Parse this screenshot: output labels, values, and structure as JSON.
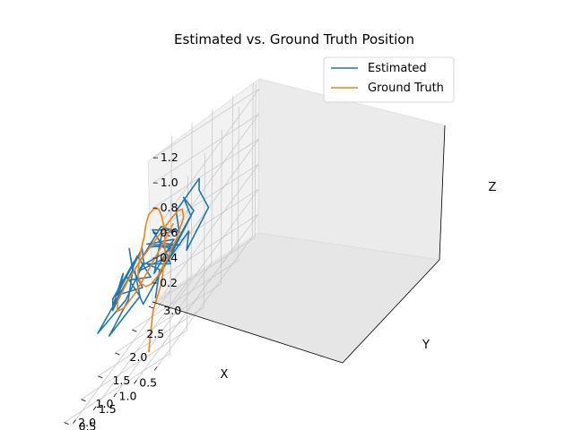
{
  "chart_data": {
    "type": "line",
    "projection": "3d",
    "title": "Estimated vs. Ground Truth Position",
    "xlabel": "X",
    "ylabel": "Y",
    "zlabel": "Z",
    "xlim": [
      0.35,
      2.95
    ],
    "ylim": [
      0.3,
      3.1
    ],
    "zlim": [
      0.05,
      1.28
    ],
    "xticks": [
      "0.5",
      "1.0",
      "1.5",
      "2.0",
      "2.5"
    ],
    "yticks": [
      "0.5",
      "1.0",
      "1.5",
      "2.0",
      "2.5",
      "3.0"
    ],
    "zticks": [
      "0.2",
      "0.4",
      "0.6",
      "0.8",
      "1.0",
      "1.2"
    ],
    "grid": true,
    "legend_position": "top-right",
    "series": [
      {
        "name": "Estimated",
        "color": "#1f77b4",
        "x": [
          0.8,
          0.95,
          1.1,
          0.85,
          1.2,
          1.35,
          1.1,
          1.5,
          1.65,
          1.4,
          1.8,
          2.0,
          1.7,
          2.2,
          2.4,
          2.1,
          2.5,
          2.3,
          2.7,
          2.45,
          2.2,
          2.6,
          2.35,
          2.0,
          1.8,
          2.1,
          1.6,
          1.9,
          1.5,
          1.3,
          1.55,
          1.15,
          1.4,
          1.0,
          1.2,
          0.9,
          1.3,
          1.6,
          1.45,
          1.85,
          2.05,
          1.75,
          2.25,
          2.5,
          2.2,
          2.6,
          2.75,
          2.4,
          2.1,
          1.95,
          2.3,
          1.7,
          1.5,
          1.9,
          1.35,
          1.1,
          1.45,
          0.95,
          1.25,
          1.05
        ],
        "y": [
          0.6,
          0.9,
          0.7,
          1.1,
          1.3,
          1.0,
          1.5,
          1.4,
          1.8,
          2.0,
          1.7,
          2.2,
          2.4,
          2.1,
          2.5,
          2.7,
          2.3,
          2.0,
          2.2,
          1.8,
          1.6,
          1.5,
          1.2,
          1.4,
          1.0,
          0.8,
          1.1,
          1.3,
          1.6,
          1.9,
          2.1,
          2.3,
          2.6,
          2.4,
          2.0,
          1.7,
          1.5,
          1.2,
          0.9,
          1.0,
          1.3,
          1.6,
          1.8,
          1.5,
          1.9,
          2.1,
          1.7,
          1.4,
          1.2,
          0.9,
          0.7,
          0.8,
          1.1,
          1.4,
          1.7,
          2.0,
          2.2,
          1.9,
          1.6,
          1.3
        ],
        "z": [
          0.55,
          0.7,
          0.85,
          0.65,
          0.8,
          0.95,
          0.75,
          0.6,
          0.8,
          0.7,
          0.9,
          0.65,
          0.5,
          0.7,
          0.6,
          0.45,
          0.55,
          0.75,
          0.6,
          0.85,
          0.7,
          0.5,
          0.65,
          0.8,
          0.6,
          0.45,
          0.55,
          0.75,
          0.9,
          0.7,
          0.85,
          0.95,
          0.8,
          0.65,
          0.5,
          0.7,
          0.6,
          0.45,
          0.6,
          0.8,
          0.7,
          0.55,
          0.75,
          0.6,
          0.45,
          0.6,
          0.5,
          0.65,
          0.8,
          0.7,
          0.55,
          0.65,
          0.8,
          0.7,
          0.6,
          0.75,
          0.9,
          0.8,
          0.65,
          0.75
        ]
      },
      {
        "name": "Ground Truth",
        "color": "#ff7f0e",
        "x": [
          0.75,
          0.8,
          0.9,
          0.85,
          0.9,
          1.0,
          1.15,
          1.35,
          1.6,
          1.85,
          2.05,
          2.2,
          2.35,
          2.45,
          2.4,
          2.2,
          1.95,
          1.7,
          1.45,
          1.2,
          1.0,
          0.95,
          1.1,
          1.35,
          1.65,
          1.95,
          2.25,
          2.5,
          2.6,
          2.45,
          2.15,
          1.8,
          1.45,
          1.15,
          0.95
        ],
        "y": [
          0.35,
          0.45,
          0.65,
          0.85,
          1.0,
          1.1,
          1.2,
          1.35,
          1.5,
          1.65,
          1.8,
          1.95,
          2.05,
          2.1,
          2.0,
          1.85,
          1.7,
          1.55,
          1.45,
          1.4,
          1.45,
          1.6,
          1.75,
          1.9,
          2.0,
          2.05,
          2.0,
          1.85,
          1.65,
          1.45,
          1.3,
          1.2,
          1.15,
          1.2,
          1.3
        ],
        "z": [
          0.2,
          0.3,
          0.45,
          0.6,
          0.8,
          0.95,
          1.05,
          1.1,
          1.1,
          1.05,
          0.95,
          0.85,
          0.75,
          0.65,
          0.55,
          0.5,
          0.48,
          0.5,
          0.55,
          0.65,
          0.75,
          0.85,
          0.9,
          0.88,
          0.82,
          0.75,
          0.68,
          0.6,
          0.52,
          0.48,
          0.5,
          0.58,
          0.7,
          0.82,
          0.92
        ]
      }
    ]
  }
}
